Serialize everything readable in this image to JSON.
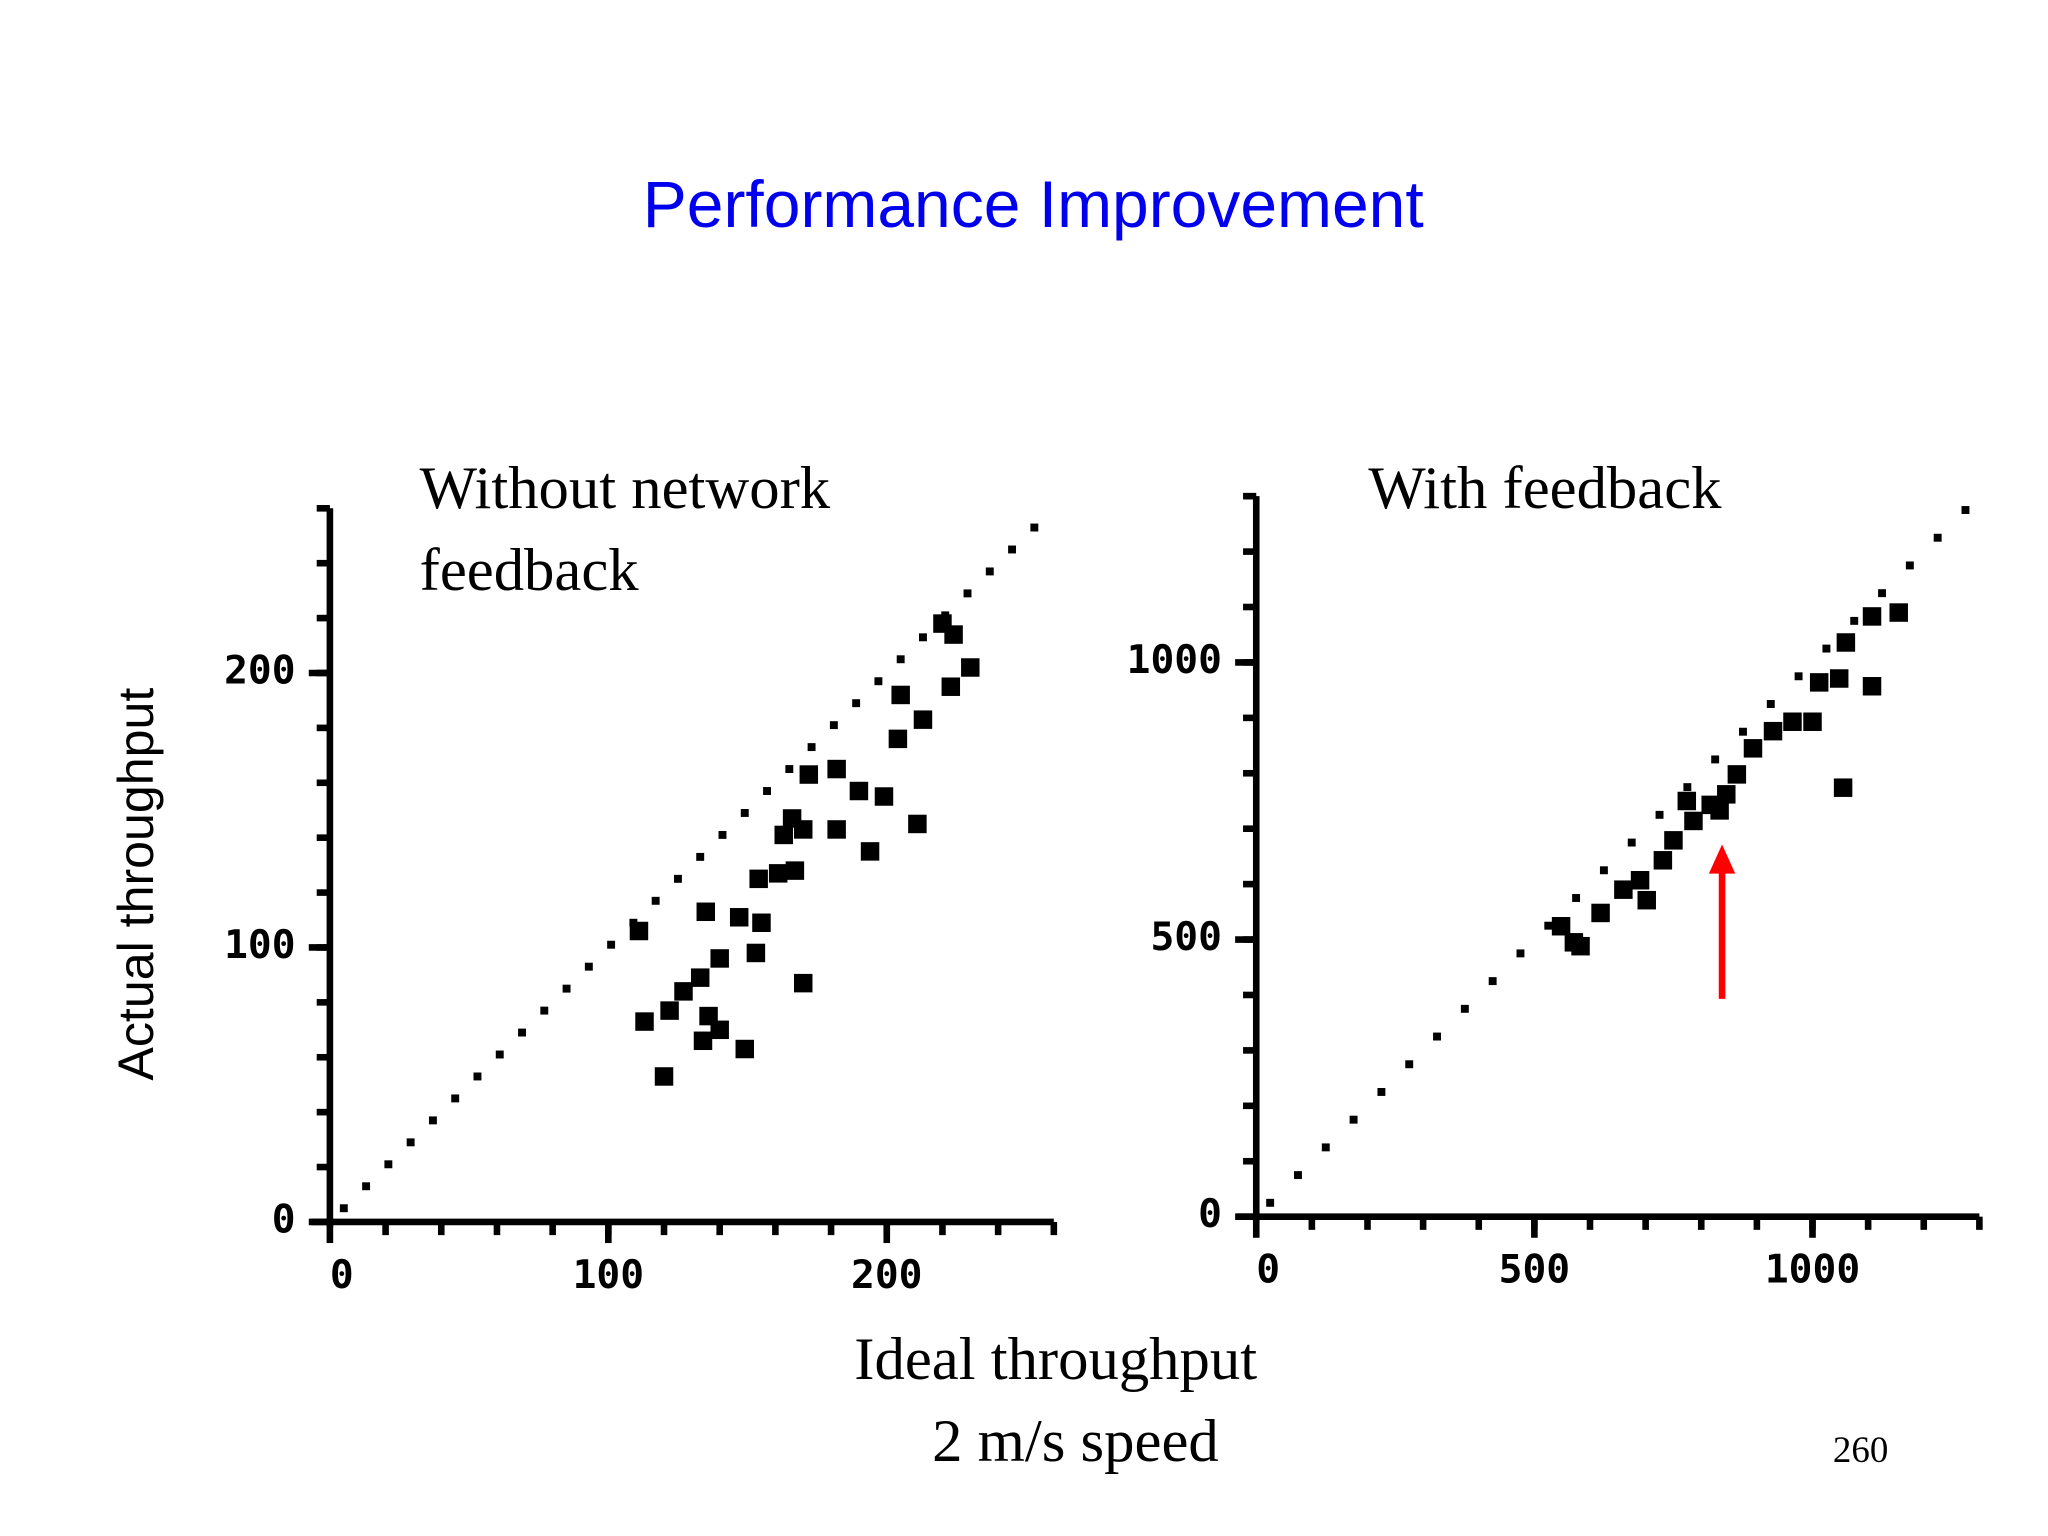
{
  "title": "Performance Improvement",
  "y_label": "Actual throughput",
  "x_label": [
    "Ideal throughput",
    "2 m/s speed"
  ],
  "page_number": "260",
  "chart_data": [
    {
      "type": "scatter",
      "title": [
        "Without network",
        "feedback"
      ],
      "xlim": [
        0,
        260
      ],
      "ylim": [
        0,
        260
      ],
      "xticks": [
        0,
        100,
        200
      ],
      "yticks": [
        0,
        100,
        200
      ],
      "series": [
        {
          "color": "#000000",
          "marker_size": 6,
          "x": [
            5,
            13,
            21,
            29,
            37,
            45,
            53,
            61,
            69,
            77,
            85,
            93,
            101,
            109,
            117,
            125,
            133,
            141,
            149,
            157,
            165,
            173,
            181,
            189,
            197,
            205,
            213,
            221,
            229,
            237,
            245,
            253
          ],
          "values": [
            5,
            13,
            21,
            29,
            37,
            45,
            53,
            61,
            69,
            77,
            85,
            93,
            101,
            109,
            117,
            125,
            133,
            141,
            149,
            157,
            165,
            173,
            181,
            189,
            197,
            205,
            213,
            221,
            229,
            237,
            245,
            253
          ]
        },
        {
          "color": "#000000",
          "marker_size": 14,
          "x": [
            111,
            135,
            147,
            155,
            140,
            133,
            127,
            122,
            113,
            136,
            140,
            134,
            149,
            120,
            170,
            153,
            154,
            161,
            167,
            163,
            170,
            182,
            194,
            172,
            182,
            190,
            199,
            211,
            204,
            213,
            223,
            230,
            205,
            220,
            224,
            166
          ],
          "values": [
            106,
            113,
            111,
            109,
            96,
            89,
            84,
            77,
            73,
            75,
            70,
            66,
            63,
            53,
            87,
            98,
            125,
            127,
            128,
            141,
            143,
            143,
            135,
            163,
            165,
            157,
            155,
            145,
            176,
            183,
            195,
            202,
            192,
            218,
            214,
            147
          ]
        }
      ]
    },
    {
      "type": "scatter",
      "title": [
        "With feedback"
      ],
      "xlim": [
        0,
        1300
      ],
      "ylim": [
        0,
        1300
      ],
      "xticks": [
        0,
        500,
        1000
      ],
      "yticks": [
        0,
        500,
        1000
      ],
      "series": [
        {
          "color": "#000000",
          "marker_size": 6,
          "x": [
            25,
            75,
            125,
            175,
            225,
            275,
            325,
            375,
            425,
            475,
            525,
            575,
            625,
            675,
            725,
            775,
            825,
            875,
            925,
            975,
            1025,
            1075,
            1125,
            1175,
            1225,
            1275
          ],
          "values": [
            25,
            75,
            125,
            175,
            225,
            275,
            325,
            375,
            425,
            475,
            525,
            575,
            625,
            675,
            725,
            775,
            825,
            875,
            925,
            975,
            1025,
            1075,
            1125,
            1175,
            1225,
            1275
          ]
        },
        {
          "color": "#000000",
          "marker_size": 14,
          "x": [
            548,
            571,
            619,
            660,
            690,
            731,
            750,
            786,
            817,
            845,
            864,
            893,
            929,
            964,
            1000,
            1012,
            1048,
            1107,
            1055,
            1060,
            1107,
            1155,
            583,
            702,
            774,
            833
          ],
          "values": [
            524,
            495,
            548,
            590,
            607,
            643,
            679,
            714,
            743,
            762,
            798,
            845,
            876,
            893,
            893,
            964,
            971,
            957,
            774,
            1036,
            1083,
            1090,
            488,
            571,
            750,
            733
          ]
        }
      ]
    }
  ]
}
